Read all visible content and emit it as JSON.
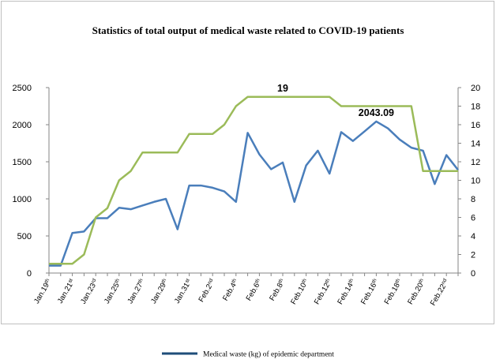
{
  "chart_data": {
    "type": "line",
    "title": "Statistics of total output of medical waste related to COVID-19 patients",
    "x_tick_labels": [
      {
        "base": "Jan.19",
        "sup": "th"
      },
      {
        "base": "Jan.21",
        "sup": "st"
      },
      {
        "base": "Jan.23",
        "sup": "rd"
      },
      {
        "base": "Jan.25",
        "sup": "th"
      },
      {
        "base": "Jan.27",
        "sup": "th"
      },
      {
        "base": "Jan.29",
        "sup": "th"
      },
      {
        "base": "Jan.31",
        "sup": "st"
      },
      {
        "base": "Feb.2",
        "sup": "nd"
      },
      {
        "base": "Feb.4",
        "sup": "th"
      },
      {
        "base": "Feb.6",
        "sup": "th"
      },
      {
        "base": "Feb.8",
        "sup": "th"
      },
      {
        "base": "Feb.10",
        "sup": "th"
      },
      {
        "base": "Feb.12",
        "sup": "th"
      },
      {
        "base": "Feb.14",
        "sup": "th"
      },
      {
        "base": "Feb.16",
        "sup": "th"
      },
      {
        "base": "Feb.18",
        "sup": "th"
      },
      {
        "base": "Feb.20",
        "sup": "th"
      },
      {
        "base": "Feb.22",
        "sup": "nd"
      }
    ],
    "y_left": {
      "min": 0,
      "max": 2500,
      "ticks": [
        0,
        500,
        1000,
        1500,
        2000,
        2500
      ]
    },
    "y_right": {
      "min": 0,
      "max": 20,
      "ticks": [
        0,
        2,
        4,
        6,
        8,
        10,
        12,
        14,
        16,
        18,
        20
      ]
    },
    "series": [
      {
        "name": "Medical waste (kg) of epidemic department",
        "axis": "left",
        "color": "#4a7ebb",
        "values": [
          100,
          100,
          540,
          560,
          740,
          740,
          880,
          860,
          910,
          960,
          1000,
          590,
          1180,
          1180,
          1150,
          1100,
          960,
          1890,
          1600,
          1400,
          1490,
          960,
          1450,
          1650,
          1340,
          1900,
          1780,
          1910,
          2043.09,
          1950,
          1800,
          1690,
          1650,
          1200,
          1590,
          1390
        ]
      },
      {
        "axis": "right",
        "color": "#9bbb59",
        "values": [
          1,
          1,
          1,
          2,
          6,
          7,
          10,
          11,
          13,
          13,
          13,
          13,
          15,
          15,
          15,
          16,
          18,
          19,
          19,
          19,
          19,
          19,
          19,
          19,
          19,
          18,
          18,
          18,
          18,
          18,
          18,
          18,
          11,
          11,
          11,
          11
        ]
      }
    ],
    "annotations": [
      {
        "text": "19",
        "series": 1,
        "index": 20
      },
      {
        "text": "2043.09",
        "series": 0,
        "index": 28
      }
    ],
    "grid": false,
    "legend_position": "bottom"
  }
}
